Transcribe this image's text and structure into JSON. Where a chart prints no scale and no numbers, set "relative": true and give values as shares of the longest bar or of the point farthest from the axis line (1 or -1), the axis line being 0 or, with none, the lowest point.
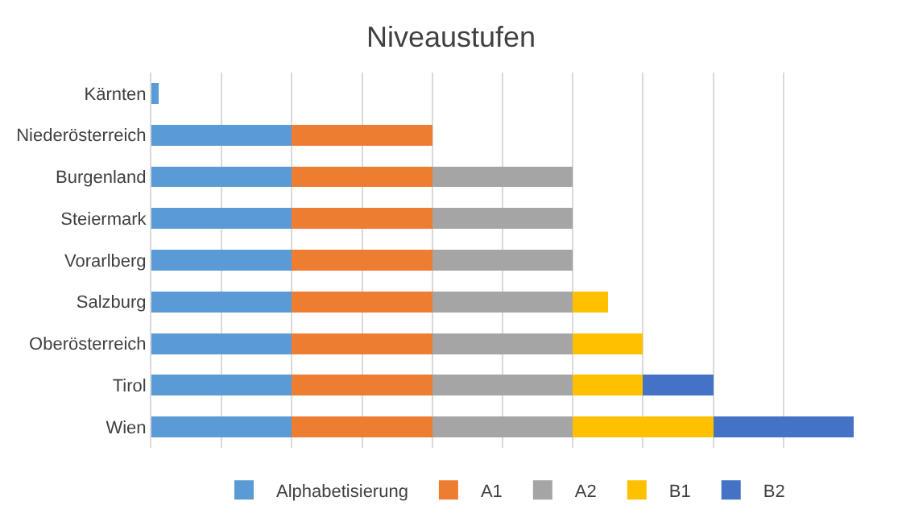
{
  "chart_data": {
    "type": "bar",
    "title": "Niveaustufen",
    "orientation": "horizontal",
    "stacked": true,
    "relative": true,
    "grid": "x",
    "legend": "bottom",
    "categories": [
      "Kärnten",
      "Niederösterreich",
      "Burgenland",
      "Steiermark",
      "Vorarlberg",
      "Salzburg",
      "Oberösterreich",
      "Tirol",
      "Wien"
    ],
    "series": [
      {
        "name": "Alphabetisierung",
        "color": "#5b9bd5",
        "values": [
          0.01,
          0.2,
          0.2,
          0.2,
          0.2,
          0.2,
          0.2,
          0.2,
          0.2
        ]
      },
      {
        "name": "A1",
        "color": "#ed7d31",
        "values": [
          null,
          0.2,
          0.2,
          0.2,
          0.2,
          0.2,
          0.2,
          0.2,
          0.2
        ]
      },
      {
        "name": "A2",
        "color": "#a5a5a5",
        "values": [
          null,
          null,
          0.2,
          0.2,
          0.2,
          0.2,
          0.2,
          0.2,
          0.2
        ]
      },
      {
        "name": "B1",
        "color": "#ffc000",
        "values": [
          null,
          null,
          null,
          null,
          null,
          0.05,
          0.1,
          0.1,
          0.2
        ]
      },
      {
        "name": "B2",
        "color": "#4472c4",
        "values": [
          null,
          null,
          null,
          null,
          null,
          null,
          null,
          0.1,
          0.2
        ]
      }
    ]
  }
}
